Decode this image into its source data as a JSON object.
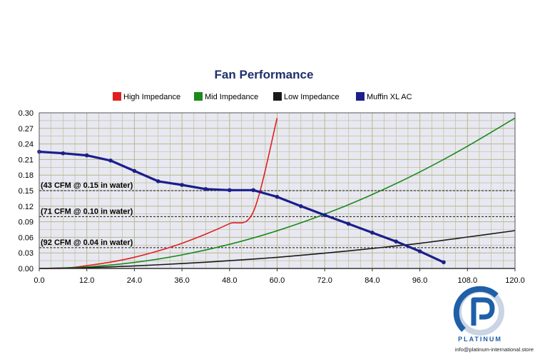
{
  "chart_data": {
    "type": "line",
    "title": "Fan Performance",
    "xlabel": "",
    "ylabel": "",
    "xlim": [
      0,
      120
    ],
    "ylim": [
      0,
      0.3
    ],
    "x_ticks": [
      "0.0",
      "12.0",
      "24.0",
      "36.0",
      "48.0",
      "60.0",
      "72.0",
      "84.0",
      "96.0",
      "108.0",
      "120.0"
    ],
    "y_ticks": [
      "0.00",
      "0.03",
      "0.06",
      "0.09",
      "0.12",
      "0.15",
      "0.18",
      "0.21",
      "0.24",
      "0.27",
      "0.30"
    ],
    "grid": true,
    "legend_position": "top",
    "series": [
      {
        "name": "High Impedance",
        "color": "#e02020",
        "markers": false,
        "points": [
          [
            0,
            0
          ],
          [
            6,
            0.0003
          ],
          [
            12,
            0.0054
          ],
          [
            18,
            0.0122
          ],
          [
            24,
            0.0216
          ],
          [
            30,
            0.0338
          ],
          [
            36,
            0.0486
          ],
          [
            42,
            0.0662
          ],
          [
            48,
            0.0864
          ],
          [
            54,
            0.1094
          ],
          [
            60,
            0.29
          ]
        ]
      },
      {
        "name": "Mid Impedance",
        "color": "#1a8a1a",
        "markers": false,
        "points": [
          [
            0,
            0
          ],
          [
            12,
            0.0029
          ],
          [
            24,
            0.0116
          ],
          [
            36,
            0.0262
          ],
          [
            48,
            0.0465
          ],
          [
            60,
            0.0727
          ],
          [
            72,
            0.1047
          ],
          [
            84,
            0.1425
          ],
          [
            96,
            0.1861
          ],
          [
            108,
            0.2356
          ],
          [
            120,
            0.29
          ]
        ]
      },
      {
        "name": "Low Impedance",
        "color": "#1a1a1a",
        "markers": false,
        "points": [
          [
            0,
            0
          ],
          [
            12,
            0.0015
          ],
          [
            24,
            0.005
          ],
          [
            36,
            0.0095
          ],
          [
            48,
            0.015
          ],
          [
            60,
            0.0215
          ],
          [
            72,
            0.0295
          ],
          [
            84,
            0.0385
          ],
          [
            96,
            0.0485
          ],
          [
            108,
            0.0605
          ],
          [
            120,
            0.073
          ]
        ]
      },
      {
        "name": "Muffin XL AC",
        "color": "#1b1f8a",
        "markers": true,
        "points": [
          [
            0,
            0.225
          ],
          [
            6,
            0.222
          ],
          [
            12,
            0.218
          ],
          [
            18,
            0.208
          ],
          [
            24,
            0.188
          ],
          [
            30,
            0.168
          ],
          [
            36,
            0.161
          ],
          [
            42,
            0.153
          ],
          [
            48,
            0.151
          ],
          [
            54,
            0.151
          ],
          [
            60,
            0.138
          ],
          [
            66,
            0.12
          ],
          [
            72,
            0.103
          ],
          [
            78,
            0.086
          ],
          [
            84,
            0.069
          ],
          [
            90,
            0.052
          ],
          [
            96,
            0.033
          ],
          [
            102,
            0.012
          ]
        ]
      }
    ],
    "annotations": [
      {
        "text": "(43 CFM @ 0.15 in water)",
        "y": 0.15,
        "line": "dashed"
      },
      {
        "text": "(71 CFM @ 0.10 in water)",
        "y": 0.1,
        "line": "dashed"
      },
      {
        "text": "(92 CFM @ 0.04 in water)",
        "y": 0.04,
        "line": "dashed"
      }
    ],
    "colors": {
      "plot_background": "#e8e8f2",
      "grid": "#b8b88a",
      "axis": "#555555"
    }
  },
  "logo": {
    "name": "PLATINUM",
    "email": "info@platinum-international.store",
    "icon": "platinum-p-logo",
    "color": "#1f5fa8"
  }
}
